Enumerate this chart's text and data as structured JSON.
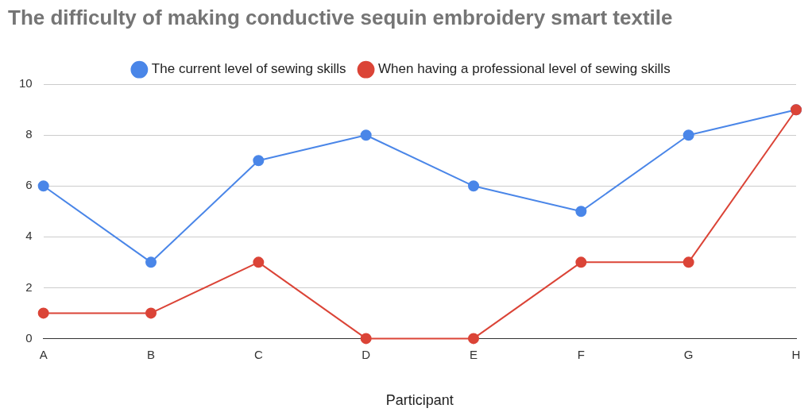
{
  "chart_data": {
    "type": "line",
    "title": "The difficulty of making conductive sequin embroidery smart textile",
    "xlabel": "Participant",
    "categories": [
      "A",
      "B",
      "C",
      "D",
      "E",
      "F",
      "G",
      "H"
    ],
    "series": [
      {
        "name": "The current level of sewing skills",
        "color": "#4a86e8",
        "values": [
          6,
          3,
          7,
          8,
          6,
          5,
          8,
          9
        ]
      },
      {
        "name": "When having a professional level of sewing skills",
        "color": "#db4437",
        "values": [
          1,
          1,
          3,
          0,
          0,
          3,
          3,
          9
        ]
      }
    ],
    "ylim": [
      0,
      10
    ],
    "yticks": [
      0,
      2,
      4,
      6,
      8,
      10
    ],
    "grid": "y",
    "legend": "top",
    "marker": "circle",
    "line_style": "solid"
  }
}
